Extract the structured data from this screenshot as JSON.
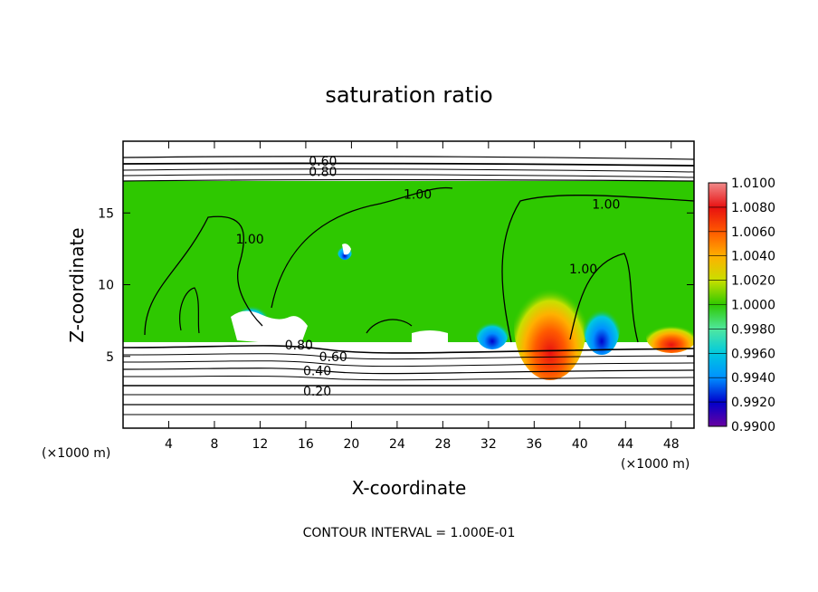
{
  "chart_data": {
    "type": "heatmap",
    "title": "saturation ratio",
    "xlabel": "X-coordinate",
    "ylabel": "Z-coordinate",
    "x_unit_left": "(×1000 m)",
    "x_unit_right": "(×1000 m)",
    "xlim": [
      0,
      50
    ],
    "ylim": [
      0,
      20
    ],
    "x_ticks": [
      4,
      8,
      12,
      16,
      20,
      24,
      28,
      32,
      36,
      40,
      44,
      48
    ],
    "y_ticks": [
      5,
      10,
      15
    ],
    "footer": "CONTOUR INTERVAL = 1.000E-01",
    "colorbar": {
      "levels": [
        "1.0100",
        "1.0080",
        "1.0060",
        "1.0040",
        "1.0020",
        "1.0000",
        "0.9980",
        "0.9960",
        "0.9940",
        "0.9920",
        "0.9900"
      ],
      "colors": [
        "#f08a8a",
        "#e81010",
        "#ff5a00",
        "#ffb000",
        "#c8e000",
        "#2ec800",
        "#50e8a0",
        "#00c8e0",
        "#0090ff",
        "#0000cc",
        "#6a00a0"
      ]
    },
    "contour_labels": [
      {
        "text": "0.60",
        "x": 17.5,
        "y": 18.6
      },
      {
        "text": "0.80",
        "x": 17.5,
        "y": 17.9
      },
      {
        "text": "1.00",
        "x": 25.8,
        "y": 16.3
      },
      {
        "text": "1.00",
        "x": 42.3,
        "y": 15.6
      },
      {
        "text": "1.00",
        "x": 11.1,
        "y": 13.2
      },
      {
        "text": "1.00",
        "x": 40.3,
        "y": 11.1
      },
      {
        "text": "0.80",
        "x": 15.4,
        "y": 5.8
      },
      {
        "text": "0.60",
        "x": 18.4,
        "y": 5.0
      },
      {
        "text": "0.40",
        "x": 17.0,
        "y": 4.0
      },
      {
        "text": "0.20",
        "x": 17.0,
        "y": 2.6
      }
    ],
    "grid": false
  }
}
